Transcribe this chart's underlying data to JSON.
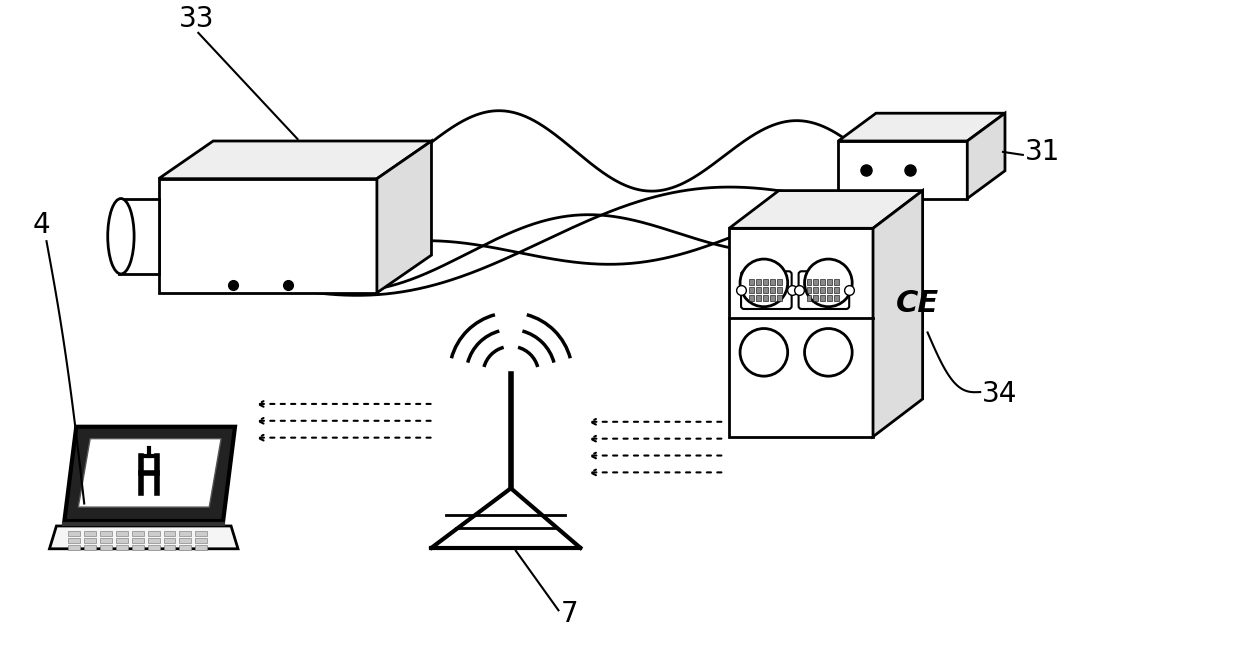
{
  "bg_color": "#ffffff",
  "line_color": "#000000",
  "label_33": "33",
  "label_31": "31",
  "label_34": "34",
  "label_4": "4",
  "label_7": "7",
  "figsize": [
    12.4,
    6.5
  ],
  "dpi": 100
}
